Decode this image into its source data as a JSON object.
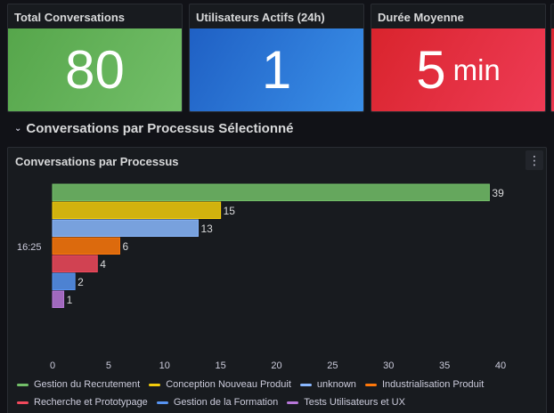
{
  "stats": [
    {
      "title": "Total Conversations",
      "value": "80",
      "unit": ""
    },
    {
      "title": "Utilisateurs Actifs (24h)",
      "value": "1",
      "unit": ""
    },
    {
      "title": "Durée Moyenne",
      "value": "5",
      "unit": "min"
    }
  ],
  "row_title": "Conversations par Processus Sélectionné",
  "panel": {
    "title": "Conversations par Processus",
    "menu_icon": "kebab-menu-icon"
  },
  "chart_data": {
    "type": "bar",
    "orientation": "horizontal",
    "category_label": "16:25",
    "series": [
      {
        "name": "Gestion du Recrutement",
        "value": 39,
        "color": "#73bf69"
      },
      {
        "name": "Conception Nouveau Produit",
        "value": 15,
        "color": "#f2cc0c"
      },
      {
        "name": "unknown",
        "value": 13,
        "color": "#8ab8ff"
      },
      {
        "name": "Industrialisation Produit",
        "value": 6,
        "color": "#ff780a"
      },
      {
        "name": "Recherche et Prototypage",
        "value": 4,
        "color": "#f2495c"
      },
      {
        "name": "Gestion de la Formation",
        "value": 2,
        "color": "#5794f2"
      },
      {
        "name": "Tests Utilisateurs et UX",
        "value": 1,
        "color": "#b877d9"
      }
    ],
    "xlim": [
      0,
      40
    ],
    "xticks": [
      0,
      5,
      10,
      15,
      20,
      25,
      30,
      35,
      40
    ],
    "legend_position": "bottom"
  }
}
